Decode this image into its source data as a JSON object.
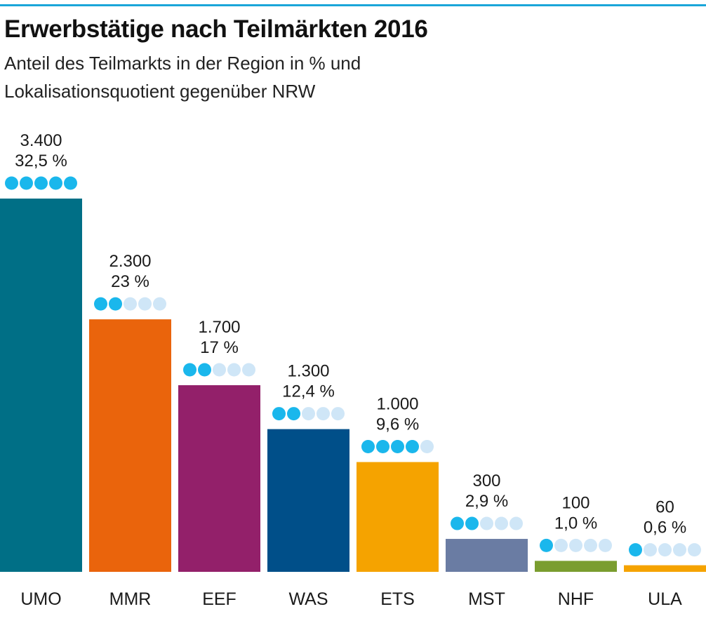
{
  "header": {
    "title": "Erwerbstätige nach Teilmärkten 2016",
    "subtitle_line1": "Anteil des Teilmarkts in der Region in % und",
    "subtitle_line2": "Lokalisationsquotient gegenüber NRW"
  },
  "colors": {
    "accent": "#1aa6d9",
    "dot_filled": "#1ab7ec",
    "dot_empty": "#cfe6f7"
  },
  "chart_data": {
    "type": "bar",
    "title": "Erwerbstätige nach Teilmärkten 2016",
    "subtitle": "Anteil des Teilmarkts in der Region in % und Lokalisationsquotient gegenüber NRW",
    "categories": [
      "UMO",
      "MMR",
      "EEF",
      "WAS",
      "ETS",
      "MST",
      "NHF",
      "ULA"
    ],
    "series": [
      {
        "values": [
          3400,
          2300,
          1700,
          1300,
          1000,
          300,
          100,
          60
        ],
        "labels": [
          "3.400",
          "2.300",
          "1.700",
          "1.300",
          "1.000",
          "300",
          "100",
          "60"
        ]
      }
    ],
    "share_percent_labels": [
      "32,5 %",
      "23 %",
      "17 %",
      "12,4 %",
      "9,6 %",
      "2,9 %",
      "1,0 %",
      "0,6 %"
    ],
    "localization_quotient_dots": [
      5,
      2,
      2,
      2,
      4,
      2,
      1,
      1
    ],
    "dots_max": 5,
    "bar_colors": [
      "#006f86",
      "#ea640c",
      "#93206a",
      "#004f89",
      "#f5a300",
      "#6a7ca3",
      "#7a9d2f",
      "#f5a300"
    ],
    "xlabel": "",
    "ylabel": "",
    "ylim": [
      0,
      3400
    ],
    "grid": false,
    "legend": "none"
  }
}
